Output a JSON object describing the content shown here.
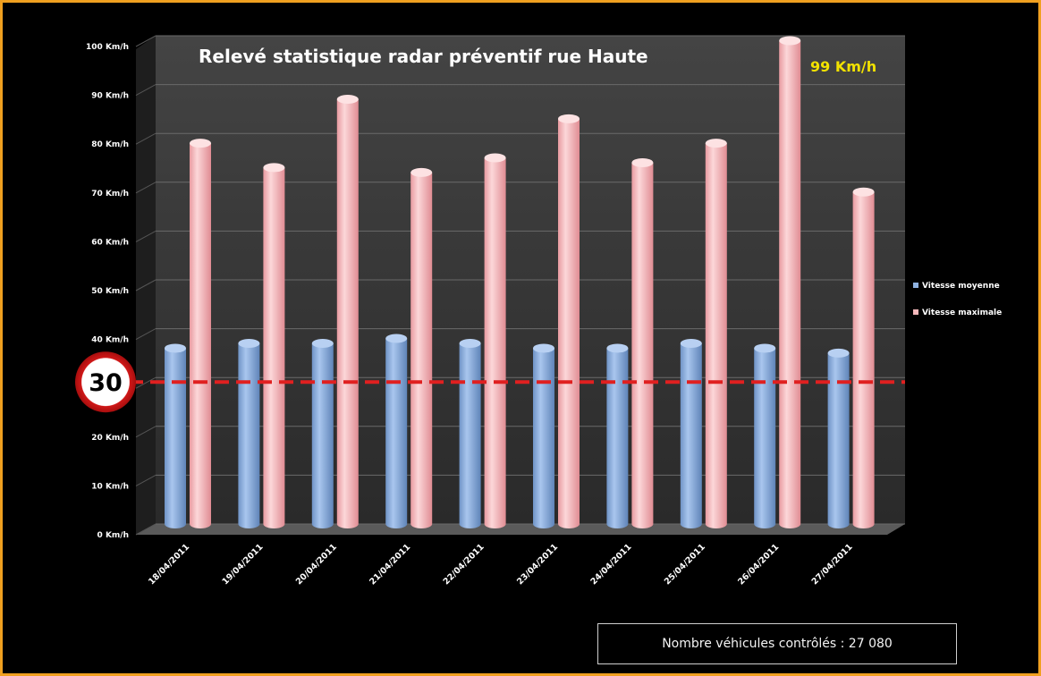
{
  "colors": {
    "background": "#000000",
    "frame_border": "#f0a020",
    "series_moyenne": "#8fb2e0",
    "series_maximale": "#f4b8bb",
    "limit_line": "#e02020",
    "annotation": "#f2e200"
  },
  "speed_sign": {
    "value": "30"
  },
  "footer": {
    "vehicles": "Nombre véhicules contrôlés : 27 080"
  },
  "chart_data": {
    "type": "bar",
    "title": "Relevé statistique radar préventif rue Haute",
    "annotation": "99 Km/h",
    "xlabel": "",
    "ylabel": "",
    "ylim": [
      0,
      100
    ],
    "y_ticks": [
      0,
      10,
      20,
      30,
      40,
      50,
      60,
      70,
      80,
      90,
      100
    ],
    "y_tick_labels": [
      "0 Km/h",
      "10 Km/h",
      "20 Km/h",
      "",
      "40 Km/h",
      "50 Km/h",
      "60 Km/h",
      "70 Km/h",
      "80 Km/h",
      "90 Km/h",
      "100 Km/h"
    ],
    "grid": true,
    "legend_position": "right",
    "speed_limit": 30,
    "categories": [
      "18/04/2011",
      "19/04/2011",
      "20/04/2011",
      "21/04/2011",
      "22/04/2011",
      "23/04/2011",
      "24/04/2011",
      "25/04/2011",
      "26/04/2011",
      "27/04/2011"
    ],
    "series": [
      {
        "name": "Vitesse moyenne",
        "values": [
          36,
          37,
          37,
          38,
          37,
          36,
          36,
          37,
          36,
          35
        ]
      },
      {
        "name": "Vitesse maximale",
        "values": [
          78,
          73,
          87,
          72,
          75,
          83,
          74,
          78,
          99,
          68
        ]
      }
    ]
  }
}
